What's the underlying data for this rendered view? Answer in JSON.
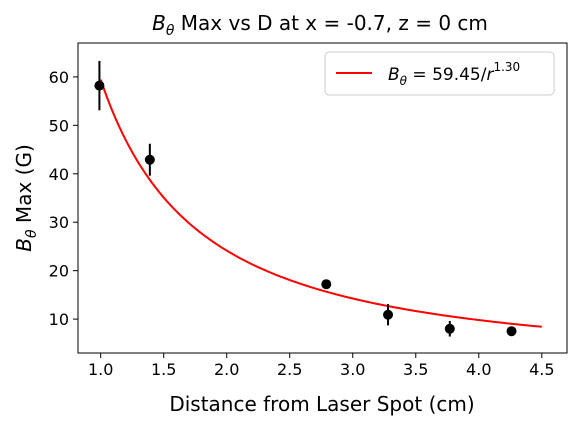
{
  "chart_data": {
    "type": "scatter",
    "title_symbol": "B",
    "title_subscript": "θ",
    "title_rest": " Max vs D at x = -0.7, z = 0 cm",
    "xlabel": "Distance from Laser Spot (cm)",
    "ylabel_symbol": "B",
    "ylabel_subscript": "θ",
    "ylabel_rest": " Max (G)",
    "xlim": [
      0.82,
      4.7
    ],
    "ylim": [
      3,
      67
    ],
    "xticks": [
      1.0,
      1.5,
      2.0,
      2.5,
      3.0,
      3.5,
      4.0,
      4.5
    ],
    "xtick_labels": [
      "1.0",
      "1.5",
      "2.0",
      "2.5",
      "3.0",
      "3.5",
      "4.0",
      "4.5"
    ],
    "yticks": [
      10,
      20,
      30,
      40,
      50,
      60
    ],
    "ytick_labels": [
      "10",
      "20",
      "30",
      "40",
      "50",
      "60"
    ],
    "grid": false,
    "legend_position": "top-right",
    "points": {
      "color": "#000000",
      "x": [
        0.99,
        1.39,
        2.79,
        3.28,
        3.77,
        4.26
      ],
      "y": [
        58.2,
        42.9,
        17.2,
        10.9,
        8.0,
        7.5
      ],
      "yerr": [
        5.1,
        3.3,
        0.6,
        2.2,
        1.6,
        0.7
      ]
    },
    "fit": {
      "color": "#ff0000",
      "coefficient": 59.45,
      "exponent": 1.3,
      "x_range": [
        1.0,
        4.5
      ],
      "legend_lhs_symbol": "B",
      "legend_lhs_subscript": "θ",
      "legend_rhs": " = 59.45/",
      "legend_r": "r",
      "legend_exponent": "1.30"
    }
  }
}
